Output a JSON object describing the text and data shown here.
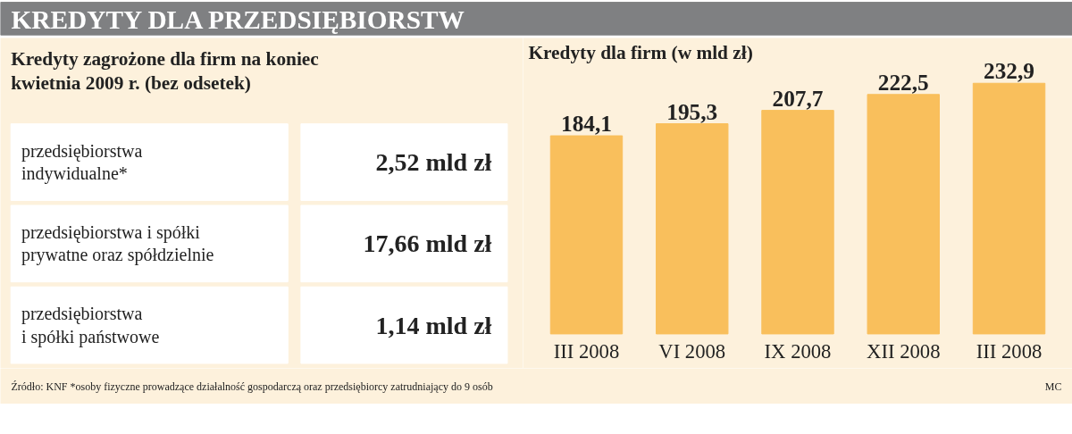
{
  "chart_data": [
    {
      "type": "other",
      "title": "KREDYTY DLA PRZEDSIĘBIORSTW",
      "subtitle": "Kredyty zagrożone dla firm na koniec\nkwietnia 2009 r. (bez odsetek)",
      "categories": [
        "przedsiębiorstwa\nindywidualne*",
        "przedsiębiorstwa i spółki\nprywatne oraz spółdzielnie",
        "przedsiębiorstwa\ni spółki państwowe"
      ],
      "values": [
        2.52,
        17.66,
        1.14
      ],
      "value_labels": [
        "2,52 mld zł",
        "17,66 mld zł",
        "1,14 mld zł"
      ],
      "annotations": [
        "Źródło: KNF",
        "*osoby fizyczne prowadzące działalność gospodarczą oraz przedsiębiorcy zatrudniający do 9 osób"
      ]
    },
    {
      "type": "bar",
      "title": "Kredyty dla firm (w mld zł)",
      "categories": [
        "III 2008",
        "VI 2008",
        "IX 2008",
        "XII 2008",
        "III 2008"
      ],
      "values": [
        184.1,
        195.3,
        207.7,
        222.5,
        232.9
      ],
      "value_labels": [
        "184,1",
        "195,3",
        "207,7",
        "222,5",
        "232,9"
      ],
      "color": "#f9bf5c",
      "ylim": [
        0,
        275
      ],
      "grid": false,
      "annotations": [
        "MC"
      ]
    }
  ]
}
